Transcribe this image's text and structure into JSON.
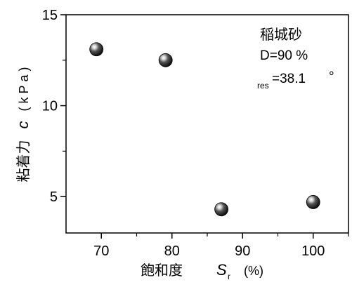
{
  "chart_data": {
    "type": "scatter",
    "x": [
      69.3,
      79.1,
      87.0,
      100.0
    ],
    "y": [
      13.1,
      12.5,
      4.3,
      4.7
    ],
    "xlim": [
      65,
      105
    ],
    "ylim": [
      3,
      15
    ],
    "xticks": [
      70,
      80,
      90,
      100
    ],
    "yticks": [
      5,
      10,
      15
    ],
    "xtick_labels": [
      "70",
      "80",
      "90",
      "100"
    ],
    "ytick_labels": [
      "5",
      "10",
      "15"
    ],
    "xlabel": {
      "text": "飽和度",
      "var": "S",
      "sub": "r",
      "unit": "(%)"
    },
    "ylabel": {
      "text": "粘着力",
      "var": "c",
      "unit": "(kPa)"
    },
    "annotation": {
      "title": "稲城砂",
      "line1": "D=90 %",
      "line2_sub": "res",
      "line2_value": "=38.1",
      "line2_unit": "°"
    },
    "grid": false,
    "marker_color": "#000000"
  }
}
